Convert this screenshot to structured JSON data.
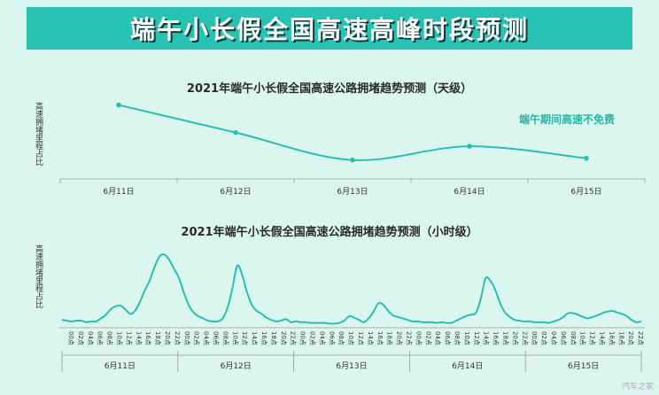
{
  "banner": {
    "title": "端午小长假全国高速高峰时段预测"
  },
  "chart_data": [
    {
      "type": "line",
      "title": "2021年端午小长假全国高速公路拥堵趋势预测（天级）",
      "ylabel": "高速拥堵里程占比",
      "categories": [
        "6月11日",
        "6月12日",
        "6月13日",
        "6月14日",
        "6月15日"
      ],
      "values": [
        0.86,
        0.54,
        0.22,
        0.38,
        0.24
      ],
      "ylim": [
        0,
        1
      ],
      "annotation": "端午期间高速不免费",
      "color": "#27c0b0",
      "grid": false
    },
    {
      "type": "line",
      "title": "2021年端午小长假全国高速公路拥堵趋势预测（小时级）",
      "ylabel": "高速拥堵里程占比",
      "groups": [
        "6月11日",
        "6月12日",
        "6月13日",
        "6月14日",
        "6月15日"
      ],
      "hour_ticks": [
        "00点",
        "02点",
        "04点",
        "06点",
        "08点",
        "10点",
        "12点",
        "14点",
        "16点",
        "18点",
        "20点",
        "22点"
      ],
      "values": [
        0.08,
        0.07,
        0.06,
        0.07,
        0.07,
        0.05,
        0.06,
        0.06,
        0.1,
        0.15,
        0.22,
        0.26,
        0.27,
        0.22,
        0.16,
        0.2,
        0.32,
        0.47,
        0.6,
        0.78,
        0.92,
        0.95,
        0.88,
        0.76,
        0.64,
        0.45,
        0.28,
        0.18,
        0.13,
        0.1,
        0.07,
        0.06,
        0.06,
        0.1,
        0.24,
        0.5,
        0.8,
        0.68,
        0.45,
        0.28,
        0.2,
        0.16,
        0.11,
        0.08,
        0.06,
        0.07,
        0.09,
        0.05,
        0.06,
        0.05,
        0.05,
        0.04,
        0.04,
        0.04,
        0.04,
        0.03,
        0.03,
        0.04,
        0.07,
        0.13,
        0.11,
        0.08,
        0.05,
        0.1,
        0.19,
        0.3,
        0.28,
        0.2,
        0.14,
        0.12,
        0.1,
        0.08,
        0.06,
        0.06,
        0.05,
        0.05,
        0.05,
        0.04,
        0.05,
        0.04,
        0.04,
        0.07,
        0.1,
        0.13,
        0.15,
        0.17,
        0.35,
        0.63,
        0.6,
        0.48,
        0.3,
        0.18,
        0.12,
        0.08,
        0.07,
        0.06,
        0.06,
        0.05,
        0.05,
        0.05,
        0.04,
        0.06,
        0.08,
        0.12,
        0.17,
        0.17,
        0.15,
        0.12,
        0.1,
        0.12,
        0.14,
        0.17,
        0.19,
        0.2,
        0.18,
        0.16,
        0.13,
        0.08,
        0.05,
        0.06
      ],
      "ylim": [
        0,
        1
      ],
      "color": "#27c0b0",
      "grid": false
    }
  ],
  "watermark": "汽车之家"
}
